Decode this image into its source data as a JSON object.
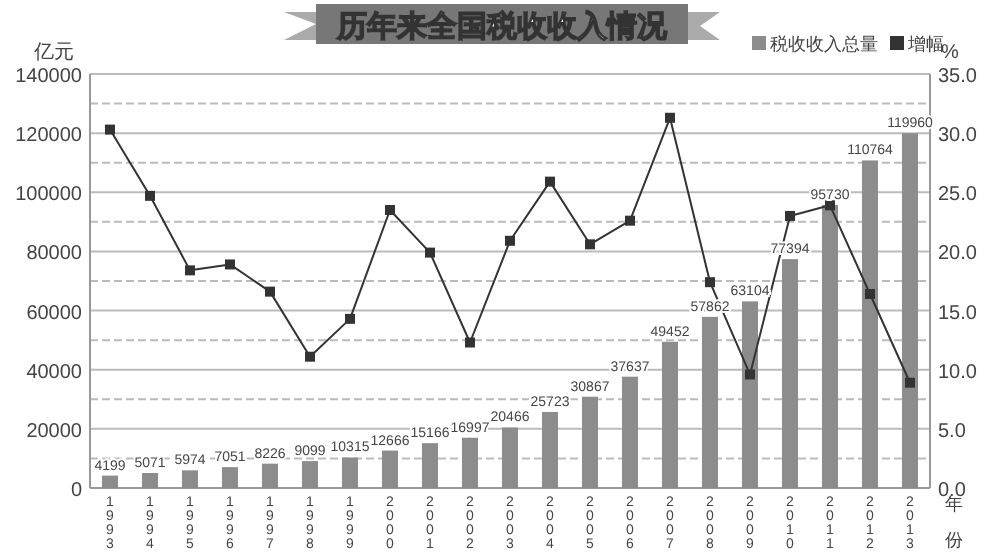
{
  "chart_data": {
    "type": "bar",
    "title": "历年来全国税收收入情况",
    "ylabel": "亿元",
    "y2label": "%",
    "xlabel": "年份",
    "categories": [
      "1993",
      "1994",
      "1995",
      "1996",
      "1997",
      "1998",
      "1999",
      "2000",
      "2001",
      "2002",
      "2003",
      "2004",
      "2005",
      "2006",
      "2007",
      "2008",
      "2009",
      "2010",
      "2011",
      "2012",
      "2013"
    ],
    "series": [
      {
        "name": "税收收入总量",
        "color": "#8c8c8c",
        "values": [
          4199,
          5071,
          5974,
          7051,
          8226,
          9099,
          10315,
          12666,
          15166,
          16997,
          20466,
          25723,
          30867,
          37637,
          49452,
          57862,
          63104,
          77394,
          95730,
          110764,
          119960
        ],
        "value_labels": [
          "4199",
          "5071",
          "5974",
          "7051",
          "8226",
          "9099",
          "10315",
          "12666",
          "15166",
          "16997",
          "20466",
          "25723",
          "30867",
          "37637",
          "49452",
          "57862",
          "63104",
          "77394",
          "95730",
          "110764",
          "119960"
        ]
      },
      {
        "name": "增幅",
        "type": "line",
        "axis": "y2",
        "color": "#333333",
        "values": [
          30.3,
          24.7,
          18.4,
          18.9,
          16.6,
          11.1,
          14.3,
          23.5,
          19.9,
          12.3,
          20.9,
          25.9,
          20.6,
          22.6,
          31.3,
          17.4,
          9.6,
          23.0,
          23.9,
          16.4,
          8.9
        ]
      }
    ],
    "legend": "top right",
    "grid": "y",
    "marker": "square",
    "line_style": "solid",
    "ylim": [
      0,
      140000
    ],
    "yticks": [
      0,
      {
        "value": 10000,
        "label": null
      },
      20000,
      {
        "value": 30000,
        "label": null
      },
      40000,
      {
        "value": 50000,
        "label": null
      },
      60000,
      {
        "value": 70000,
        "label": null
      },
      80000,
      {
        "value": 90000,
        "label": null
      },
      100000,
      {
        "value": 110000,
        "label": null
      },
      120000,
      {
        "value": 130000,
        "label": null
      },
      140000
    ],
    "y2lim": [
      0,
      35
    ],
    "y2ticks": [
      {
        "value": 0,
        "label": "0.0"
      },
      {
        "value": 5,
        "label": "5.0"
      },
      {
        "value": 10,
        "label": "10.0"
      },
      {
        "value": 15,
        "label": "15.0"
      },
      {
        "value": 20,
        "label": "20.0"
      },
      {
        "value": 25,
        "label": "25.0"
      },
      {
        "value": 30,
        "label": "30.0"
      },
      {
        "value": 35,
        "label": "35.0"
      }
    ]
  }
}
